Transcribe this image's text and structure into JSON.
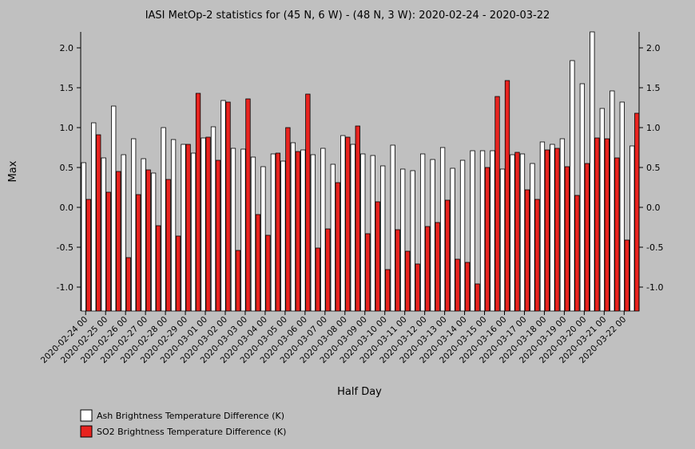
{
  "chart_data": {
    "type": "bar",
    "title": "IASI MetOp-2 statistics for (45 N, 6 W) - (48 N, 3 W): 2020-02-24 - 2020-03-22",
    "xlabel": "Half Day",
    "ylabel": "Max",
    "ylim": [
      -1.3,
      2.2
    ],
    "yticks": [
      -1.0,
      -0.5,
      0.0,
      0.5,
      1.0,
      1.5,
      2.0
    ],
    "ytick_labels": [
      "-1.0",
      "-0.5",
      "0.0",
      "0.5",
      "1.0",
      "1.5",
      "2.0"
    ],
    "tick_labels": [
      "2020-02-24 00",
      "2020-02-25 00",
      "2020-02-26 00",
      "2020-02-27 00",
      "2020-02-28 00",
      "2020-02-29 00",
      "2020-03-01 00",
      "2020-03-02 00",
      "2020-03-03 00",
      "2020-03-04 00",
      "2020-03-05 00",
      "2020-03-06 00",
      "2020-03-07 00",
      "2020-03-08 00",
      "2020-03-09 00",
      "2020-03-10 00",
      "2020-03-11 00",
      "2020-03-12 00",
      "2020-03-13 00",
      "2020-03-14 00",
      "2020-03-15 00",
      "2020-03-16 00",
      "2020-03-17 00",
      "2020-03-18 00",
      "2020-03-19 00",
      "2020-03-20 00",
      "2020-03-21 00",
      "2020-03-22 00"
    ],
    "legend_position": "bottom-left",
    "grid": false,
    "series": [
      {
        "name": "Ash Brightness Temperature Difference (K)",
        "color": "#ffffff",
        "values": [
          0.56,
          1.06,
          0.62,
          1.27,
          0.66,
          0.86,
          0.61,
          0.43,
          1.0,
          0.85,
          0.79,
          0.68,
          0.87,
          1.01,
          1.34,
          0.74,
          0.73,
          0.63,
          0.51,
          0.67,
          0.58,
          0.81,
          0.72,
          0.66,
          0.74,
          0.54,
          0.9,
          0.79,
          0.67,
          0.65,
          0.52,
          0.78,
          0.48,
          0.46,
          0.67,
          0.6,
          0.75,
          0.49,
          0.59,
          0.71,
          0.71,
          0.71,
          0.48,
          0.66,
          0.67,
          0.55,
          0.82,
          0.79,
          0.86,
          1.84,
          1.55,
          2.2,
          1.24,
          1.46,
          1.32,
          0.77
        ]
      },
      {
        "name": "SO2 Brightness Temperature Difference (K)",
        "color": "#e8231f",
        "values": [
          0.1,
          0.91,
          0.19,
          0.45,
          -0.63,
          0.16,
          0.47,
          -0.23,
          0.35,
          -0.36,
          0.79,
          1.43,
          0.88,
          0.59,
          1.32,
          -0.54,
          1.36,
          -0.09,
          -0.35,
          0.68,
          1.0,
          0.7,
          1.42,
          -0.51,
          -0.27,
          0.31,
          0.88,
          1.02,
          -0.33,
          0.07,
          -0.78,
          -0.28,
          -0.55,
          -0.71,
          -0.24,
          -0.19,
          0.09,
          -0.65,
          -0.69,
          -0.96,
          0.5,
          1.39,
          1.59,
          0.69,
          0.22,
          0.1,
          0.72,
          0.74,
          0.51,
          0.15,
          0.55,
          0.87,
          0.86,
          0.62,
          -0.41,
          1.18
        ]
      }
    ]
  }
}
